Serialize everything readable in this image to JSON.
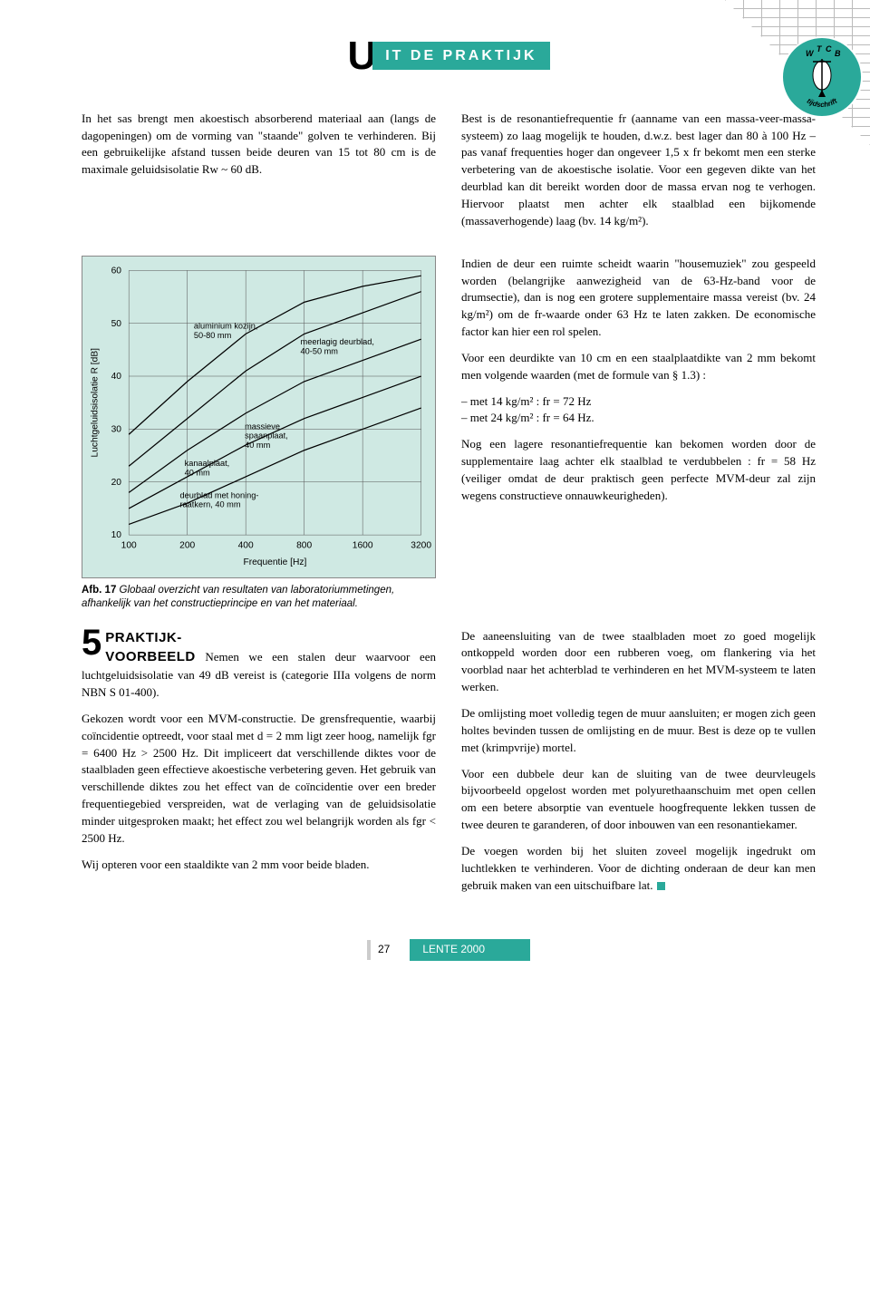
{
  "header": {
    "big_letter": "U",
    "title_box": "IT DE PRAKTIJK"
  },
  "badge": {
    "top_letters": "W T C B",
    "bottom_word": "tijdschrift"
  },
  "top_left_para": "In het sas brengt men akoestisch absorberend materiaal aan (langs de dagopeningen) om de vorming van \"staande\" golven te verhinderen. Bij een gebruikelijke afstand tussen beide deuren van 15 tot 80 cm is de maximale geluidsisolatie Rw ~ 60 dB.",
  "top_right_para": "Best is de resonantiefrequentie fr (aanname van een massa-veer-massa-systeem) zo laag mogelijk te houden, d.w.z. best lager dan 80 à 100 Hz – pas vanaf frequenties hoger dan ongeveer 1,5 x fr bekomt men een sterke verbetering van de akoestische isolatie. Voor een gegeven dikte van het deurblad kan dit bereikt worden door de massa ervan nog te verhogen. Hiervoor plaatst men achter elk staalblad een bijkomende (massaverhogende) laag (bv. 14 kg/m²).",
  "right_col": {
    "p1": "Indien de deur een ruimte scheidt waarin \"housemuziek\" zou gespeeld worden (belangrijke aanwezigheid van de 63-Hz-band voor de drumsectie), dan is nog een grotere supplementaire massa vereist (bv. 24 kg/m²) om de fr-waarde onder 63 Hz te laten zakken. De economische factor kan hier een rol spelen.",
    "p2_intro": "Voor een deurdikte van 10 cm en een staalplaatdikte van 2 mm bekomt men volgende waarden (met de formule van § 1.3) :",
    "li1": "met 14 kg/m² : fr = 72 Hz",
    "li2": "met 24 kg/m² : fr = 64 Hz.",
    "p3": "Nog een lagere resonantiefrequentie kan bekomen worden door de supplementaire laag achter elk staalblad te verdubbelen : fr = 58 Hz (veiliger omdat de deur praktisch geen perfecte MVM-deur zal zijn wegens constructieve onnauwkeurigheden)."
  },
  "chart": {
    "type": "line",
    "background_color": "#cfe9e3",
    "grid_color": "#555555",
    "curve_color": "#000000",
    "curve_width": 1.2,
    "x_label": "Frequentie [Hz]",
    "y_label": "Luchtgeluidsisolatie R [dB]",
    "x_scale": "log",
    "x_ticks": [
      100,
      200,
      400,
      800,
      1600,
      3200
    ],
    "y_ticks": [
      10,
      20,
      30,
      40,
      50,
      60
    ],
    "ylim": [
      10,
      60
    ],
    "axis_fontsize": 10,
    "label_fontsize": 9,
    "curves": [
      {
        "label": "aluminium kozijn,\n50-80 mm",
        "points": [
          [
            100,
            29
          ],
          [
            200,
            39
          ],
          [
            400,
            48
          ],
          [
            800,
            54
          ],
          [
            1600,
            57
          ],
          [
            3200,
            59
          ]
        ]
      },
      {
        "label": "meerlagig deurblad,\n40-50 mm",
        "points": [
          [
            100,
            23
          ],
          [
            200,
            32
          ],
          [
            400,
            41
          ],
          [
            800,
            48
          ],
          [
            1600,
            52
          ],
          [
            3200,
            56
          ]
        ]
      },
      {
        "label": "massieve\nspaanplaat,\n40 mm",
        "points": [
          [
            100,
            18
          ],
          [
            200,
            26
          ],
          [
            400,
            33
          ],
          [
            800,
            39
          ],
          [
            1600,
            43
          ],
          [
            3200,
            47
          ]
        ]
      },
      {
        "label": "kanaalplaat,\n40 mm",
        "points": [
          [
            100,
            15
          ],
          [
            200,
            21
          ],
          [
            400,
            27
          ],
          [
            800,
            32
          ],
          [
            1600,
            36
          ],
          [
            3200,
            40
          ]
        ]
      },
      {
        "label": "deurblad met honing-\nraatkern, 40 mm",
        "points": [
          [
            100,
            12
          ],
          [
            200,
            16
          ],
          [
            400,
            21
          ],
          [
            800,
            26
          ],
          [
            1600,
            30
          ],
          [
            3200,
            34
          ]
        ]
      }
    ]
  },
  "chart_caption_bold": "Afb. 17",
  "chart_caption_rest": " Globaal overzicht van resultaten van laboratoriummetingen, afhankelijk van het constructieprincipe en van het materiaal.",
  "section5": {
    "number": "5",
    "title_line1": "PRAKTIJK-",
    "title_line2": "VOORBEELD",
    "p1": "Nemen we een stalen deur waarvoor een luchtgeluidsisolatie van 49 dB vereist is (categorie IIIa volgens de norm NBN S 01-400).",
    "p2": "Gekozen wordt voor een MVM-constructie. De grensfrequentie, waarbij coïncidentie optreedt, voor staal met d = 2 mm ligt zeer hoog, namelijk fgr = 6400 Hz > 2500 Hz. Dit impliceert dat verschillende diktes voor de staalbladen geen effectieve akoestische verbetering geven. Het gebruik van verschillende diktes zou het effect van de coïncidentie over een breder frequentiegebied verspreiden, wat de verlaging van de geluidsisolatie minder uitgesproken maakt; het effect zou wel belangrijk worden als fgr < 2500 Hz.",
    "p3": "Wij opteren voor een staaldikte van 2 mm voor beide bladen."
  },
  "lower_right": {
    "p1": "De aaneensluiting van de twee staalbladen moet zo goed mogelijk ontkoppeld worden door een rubberen voeg, om flankering via het voorblad naar het achterblad te verhinderen en het MVM-systeem te laten werken.",
    "p2": "De omlijsting moet volledig tegen de muur aansluiten; er mogen zich geen holtes bevinden tussen de omlijsting en de muur. Best is deze op te vullen met (krimpvrije) mortel.",
    "p3": "Voor een dubbele deur kan de sluiting van de twee deurvleugels bijvoorbeeld opgelost worden met polyurethaanschuim met open cellen om een betere absorptie van eventuele hoogfrequente lekken tussen de twee deuren te garanderen, of door inbouwen van een resonantiekamer.",
    "p4": "De voegen worden bij het sluiten zoveel mogelijk ingedrukt om luchtlekken te verhinderen. Voor de dichting onderaan de deur kan men gebruik maken van een uitschuifbare lat."
  },
  "footer": {
    "page": "27",
    "season": "LENTE 2000"
  }
}
